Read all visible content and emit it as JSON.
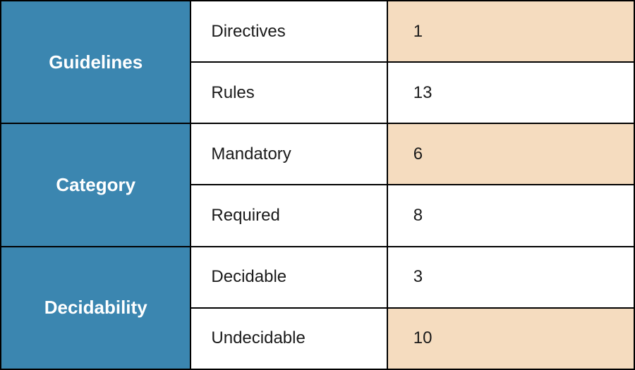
{
  "table": {
    "group_header_bg": "#3b86b0",
    "highlight_bg": "#f5dcbf",
    "plain_bg": "#ffffff",
    "groups": [
      {
        "title": "Guidelines",
        "rows": [
          {
            "label": "Directives",
            "value": "1",
            "highlighted": true
          },
          {
            "label": "Rules",
            "value": "13",
            "highlighted": false
          }
        ]
      },
      {
        "title": "Category",
        "rows": [
          {
            "label": "Mandatory",
            "value": "6",
            "highlighted": true
          },
          {
            "label": "Required",
            "value": "8",
            "highlighted": false
          }
        ]
      },
      {
        "title": "Decidability",
        "rows": [
          {
            "label": "Decidable",
            "value": "3",
            "highlighted": false
          },
          {
            "label": "Undecidable",
            "value": "10",
            "highlighted": true
          }
        ]
      }
    ]
  }
}
